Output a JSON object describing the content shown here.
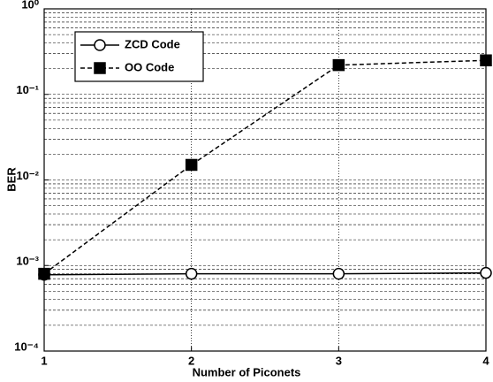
{
  "chart_data": {
    "type": "line",
    "x_label": "Number of Piconets",
    "y_label": "BER",
    "x": [
      1,
      2,
      3,
      4
    ],
    "series": [
      {
        "name": "ZCD Code",
        "color": "#000000",
        "marker": "circle",
        "dash": "solid",
        "values": [
          0.00078,
          0.0008,
          0.0008,
          0.00082
        ]
      },
      {
        "name": "OO Code",
        "color": "#000000",
        "marker": "square",
        "dash": "dashed",
        "values": [
          0.0008,
          0.015,
          0.22,
          0.25
        ]
      }
    ],
    "xlim": [
      1,
      4
    ],
    "xticks": [
      1,
      2,
      3,
      4
    ],
    "ylim": [
      0.0001,
      1
    ],
    "log_y": true,
    "yticks": [
      {
        "value": 0.0001,
        "label": "10⁻⁴"
      },
      {
        "value": 0.001,
        "label": "10⁻³"
      },
      {
        "value": 0.01,
        "label": "10⁻²"
      },
      {
        "value": 0.1,
        "label": "10⁻¹"
      },
      {
        "value": 1,
        "label": "10⁰"
      }
    ],
    "grid": true,
    "legend": "upper left"
  }
}
